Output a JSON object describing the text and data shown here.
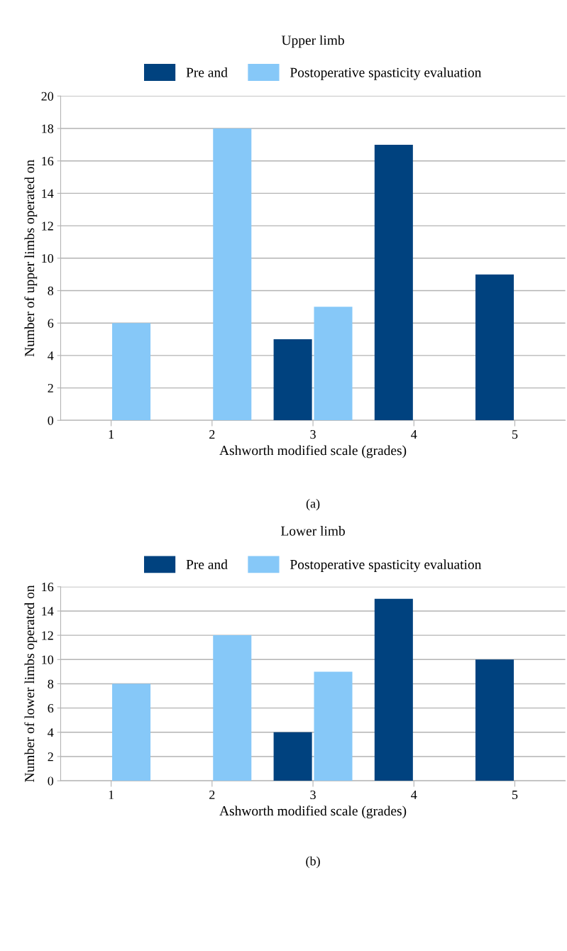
{
  "chart_data": [
    {
      "type": "bar",
      "title": "Upper limb",
      "xlabel": "Ashworth modified scale (grades)",
      "ylabel": "Number of upper limbs operated on",
      "categories": [
        "1",
        "2",
        "3",
        "4",
        "5"
      ],
      "series": [
        {
          "name": "Pre and",
          "color": "#00427f",
          "values": [
            0,
            0,
            5,
            17,
            9
          ]
        },
        {
          "name": "Postoperative spasticity evaluation",
          "color": "#86c8f8",
          "values": [
            6,
            18,
            7,
            0,
            0
          ]
        }
      ],
      "ylim": [
        0,
        20
      ],
      "yticks": [
        0,
        2,
        4,
        6,
        8,
        10,
        12,
        14,
        16,
        18,
        20
      ],
      "grid": "y",
      "legend": "top",
      "annotations": [
        "(a)"
      ]
    },
    {
      "type": "bar",
      "title": "Lower limb",
      "xlabel": "Ashworth modified scale (grades)",
      "ylabel": "Number of lower limbs operated on",
      "categories": [
        "1",
        "2",
        "3",
        "4",
        "5"
      ],
      "series": [
        {
          "name": "Pre and",
          "color": "#00427f",
          "values": [
            0,
            0,
            4,
            15,
            10
          ]
        },
        {
          "name": "Postoperative spasticity evaluation",
          "color": "#86c8f8",
          "values": [
            8,
            12,
            9,
            0,
            0
          ]
        }
      ],
      "ylim": [
        0,
        16
      ],
      "yticks": [
        0,
        2,
        4,
        6,
        8,
        10,
        12,
        14,
        16
      ],
      "grid": "y",
      "legend": "top",
      "annotations": [
        "(b)"
      ]
    }
  ]
}
